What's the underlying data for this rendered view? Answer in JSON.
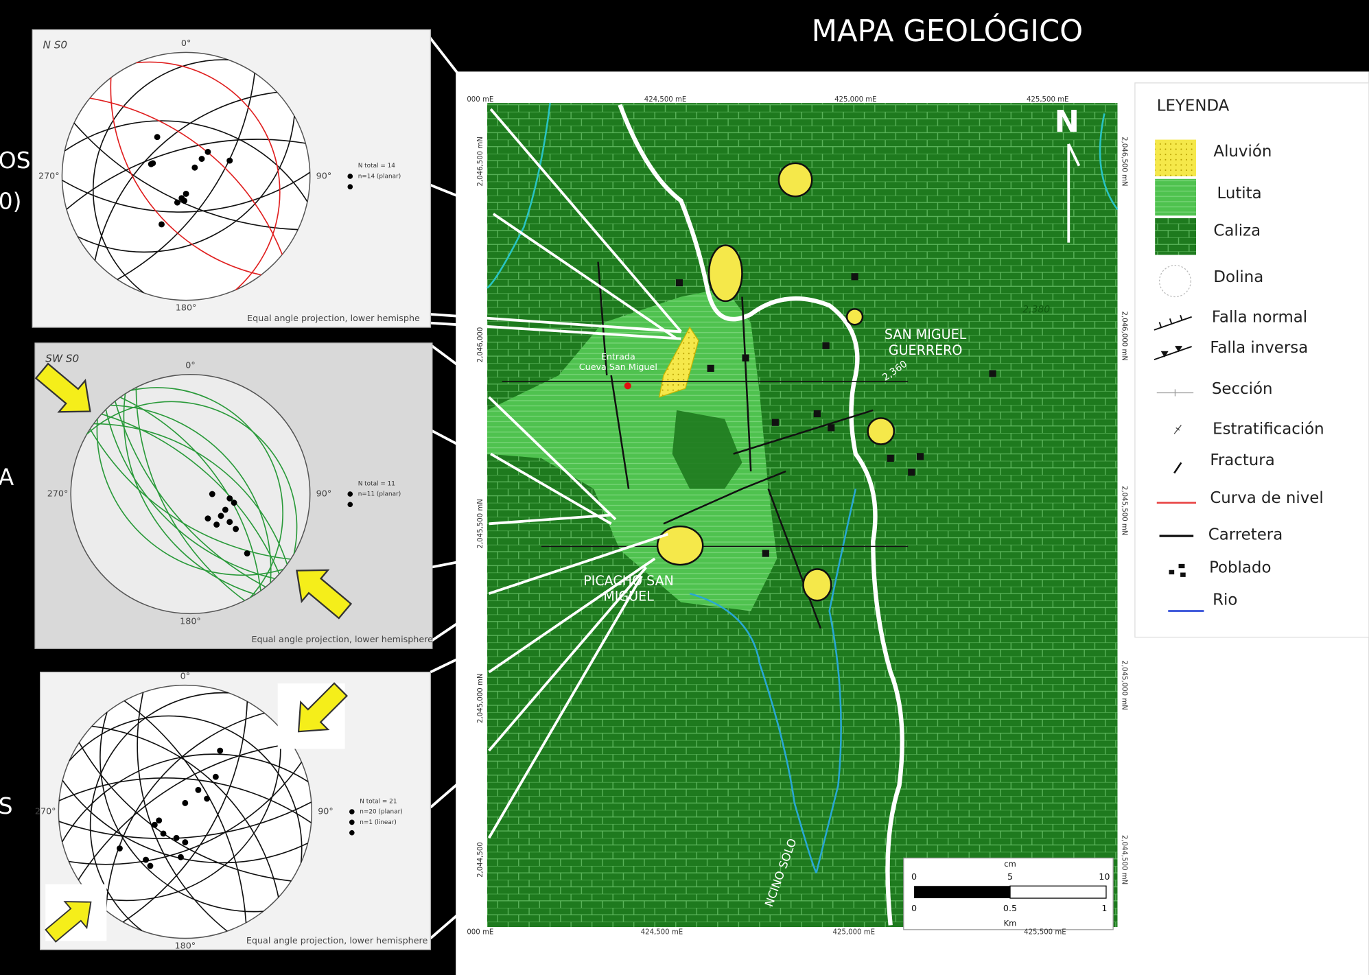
{
  "title": "MAPA GEOLÓGICO",
  "edge_texts": [
    "OS",
    "0)",
    "A",
    "S"
  ],
  "stereonets": [
    {
      "label": "N S0",
      "north": "0°",
      "east": "90°",
      "south": "180°",
      "west": "270°",
      "stats": [
        "N total = 14",
        "n=14 (planar)"
      ],
      "footer": "Equal angle projection, lower hemisphe"
    },
    {
      "label": "SW S0",
      "north": "0°",
      "east": "90°",
      "south": "180°",
      "west": "270°",
      "stats": [
        "N total = 11",
        "n=11 (planar)"
      ],
      "footer": "Equal angle projection, lower hemisphere"
    },
    {
      "north": "0°",
      "east": "90°",
      "south": "180°",
      "west": "270°",
      "stats": [
        "N total = 21",
        "n=20 (planar)",
        "n=1 (linear)"
      ],
      "footer": "Equal angle projection, lower hemisphere"
    }
  ],
  "map": {
    "top_eastings": [
      "000 mE",
      "424,500 mE",
      "425,000 mE",
      "425,500 mE"
    ],
    "bottom_eastings": [
      "000 mE",
      "424,500 mE",
      "425,000 mE",
      "425,500 mE"
    ],
    "left_northings": [
      "2,046,500 mN",
      "2,046,000",
      "2,045,500 mN",
      "2,045,000 mN",
      "2,044,500"
    ],
    "right_northings": [
      "2,046,500 mN",
      "2,046,000 mN",
      "2,045,500 mN",
      "2,045,000 mN",
      "2,044,500 mN"
    ],
    "places": [
      {
        "lines": [
          "SAN MIGUEL",
          "GUERRERO"
        ]
      },
      {
        "lines": [
          "Entrada",
          "Cueva San Miguel"
        ]
      },
      {
        "lines": [
          "PICACHO SAN",
          "MIGUEL"
        ]
      },
      {
        "lines": [
          "NCINO SOLO"
        ]
      }
    ],
    "contours": [
      "2,380",
      "2,360"
    ],
    "north": "N",
    "scale": {
      "unit_top": "cm",
      "top": [
        "0",
        "5",
        "10"
      ],
      "bottom": [
        "0",
        "0.5",
        "1"
      ],
      "unit_bottom": "Km"
    }
  },
  "legend": {
    "title": "LEYENDA",
    "items": [
      "Aluvión",
      "Lutita",
      "Caliza",
      "Dolina",
      "Falla normal",
      "Falla inversa",
      "Sección",
      "Estratificación",
      "Fractura",
      "Curva de nivel",
      "Carretera",
      "Poblado",
      "Rio"
    ]
  }
}
